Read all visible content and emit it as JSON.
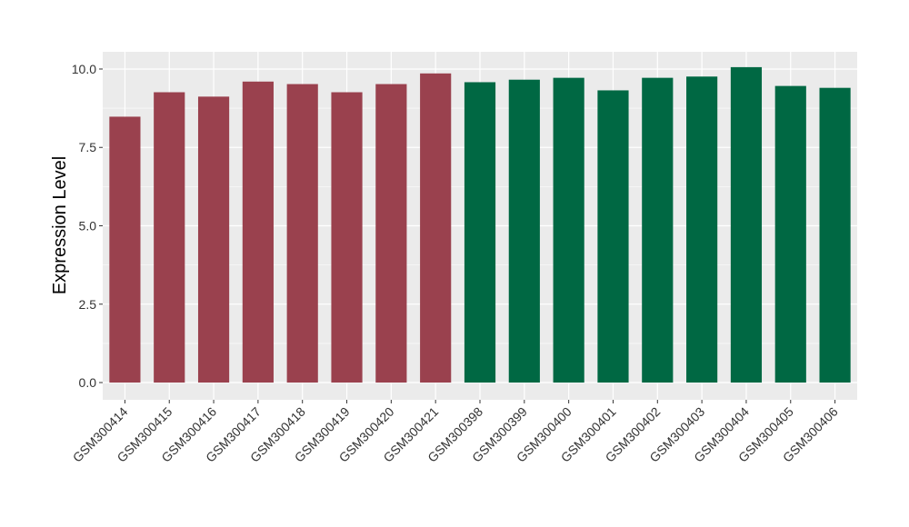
{
  "chart_data": {
    "type": "bar",
    "title": "",
    "xlabel": "",
    "ylabel": "Expression Level",
    "ylim": [
      -0.55,
      10.55
    ],
    "yticks": [
      0.0,
      2.5,
      5.0,
      7.5,
      10.0
    ],
    "ytick_labels": [
      "0.0",
      "2.5",
      "5.0",
      "7.5",
      "10.0"
    ],
    "grid": true,
    "legend": "none",
    "categories": [
      "GSM300414",
      "GSM300415",
      "GSM300416",
      "GSM300417",
      "GSM300418",
      "GSM300419",
      "GSM300420",
      "GSM300421",
      "GSM300398",
      "GSM300399",
      "GSM300400",
      "GSM300401",
      "GSM300402",
      "GSM300403",
      "GSM300404",
      "GSM300405",
      "GSM300406"
    ],
    "values": [
      8.48,
      9.26,
      9.12,
      9.6,
      9.52,
      9.26,
      9.52,
      9.86,
      9.58,
      9.66,
      9.72,
      9.32,
      9.72,
      9.76,
      10.06,
      9.46,
      9.4
    ],
    "bar_colors": [
      "#9a414e",
      "#9a414e",
      "#9a414e",
      "#9a414e",
      "#9a414e",
      "#9a414e",
      "#9a414e",
      "#9a414e",
      "#006843",
      "#006843",
      "#006843",
      "#006843",
      "#006843",
      "#006843",
      "#006843",
      "#006843",
      "#006843"
    ],
    "panel_background": "#ebebeb",
    "grid_color": "#ffffff"
  }
}
